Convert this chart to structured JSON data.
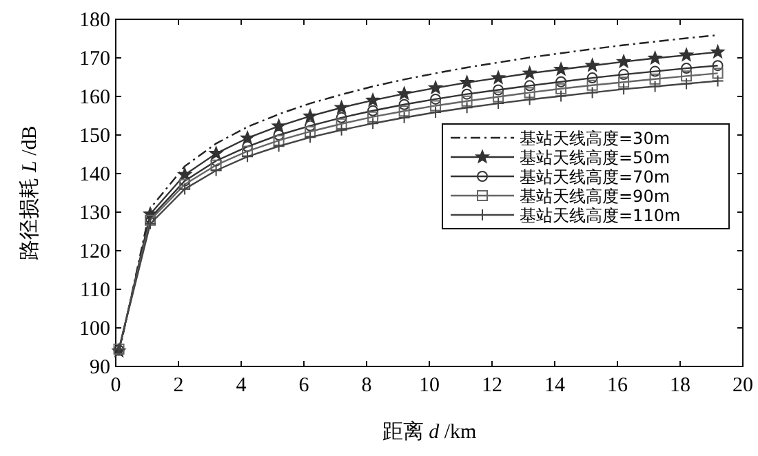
{
  "chart_data": {
    "type": "line",
    "xlabel": "距离 *d* /km",
    "ylabel": "路径损耗 *L* /dB",
    "xlim": [
      0,
      20
    ],
    "ylim": [
      90,
      180
    ],
    "xticks": [
      0,
      2,
      4,
      6,
      8,
      10,
      12,
      14,
      16,
      18,
      20
    ],
    "yticks": [
      90,
      100,
      110,
      120,
      130,
      140,
      150,
      160,
      170,
      180
    ],
    "grid": false,
    "legend": "right",
    "x": [
      0.1,
      1.1,
      2.2,
      3.2,
      4.2,
      5.2,
      6.2,
      7.2,
      8.2,
      9.2,
      10.2,
      11.2,
      12.2,
      13.2,
      14.2,
      15.2,
      16.2,
      17.2,
      18.2,
      19.2
    ],
    "series": [
      {
        "name": "基站天线高度=30m",
        "color": "#222222",
        "marker": "none",
        "line_style": "dashed",
        "values": [
          93.3,
          131.0,
          141.9,
          147.8,
          152.1,
          155.4,
          158.2,
          160.5,
          162.6,
          164.4,
          166.0,
          167.5,
          168.8,
          170.1,
          171.2,
          172.3,
          173.3,
          174.2,
          175.1,
          175.9
        ]
      },
      {
        "name": "基站天线高度=50m",
        "color": "#333333",
        "marker": "star",
        "line_style": "solid",
        "values": [
          94.0,
          129.5,
          139.7,
          145.2,
          149.2,
          152.3,
          154.9,
          157.1,
          159.0,
          160.7,
          162.2,
          163.6,
          164.8,
          166.0,
          167.0,
          168.0,
          169.0,
          169.9,
          170.7,
          171.5
        ]
      },
      {
        "name": "基站天线高度=70m",
        "color": "#333333",
        "marker": "circle",
        "line_style": "solid",
        "values": [
          94.2,
          128.5,
          138.1,
          143.3,
          147.0,
          150.0,
          152.4,
          154.5,
          156.3,
          157.9,
          159.3,
          160.6,
          161.7,
          162.8,
          163.8,
          164.8,
          165.7,
          166.5,
          167.3,
          168.0
        ]
      },
      {
        "name": "基站天线高度=90m",
        "color": "#666666",
        "marker": "square",
        "line_style": "solid",
        "values": [
          94.5,
          127.9,
          137.2,
          142.2,
          145.8,
          148.6,
          150.9,
          152.9,
          154.7,
          156.2,
          157.6,
          158.8,
          159.9,
          161.0,
          162.0,
          162.9,
          163.7,
          164.5,
          165.3,
          166.0
        ]
      },
      {
        "name": "基站天线高度=110m",
        "color": "#444444",
        "marker": "cross",
        "line_style": "solid",
        "values": [
          94.5,
          127.0,
          136.0,
          140.8,
          144.4,
          147.1,
          149.4,
          151.3,
          153.0,
          154.5,
          155.9,
          157.1,
          158.2,
          159.2,
          160.1,
          161.0,
          161.9,
          162.6,
          163.3,
          164.0
        ]
      }
    ]
  }
}
